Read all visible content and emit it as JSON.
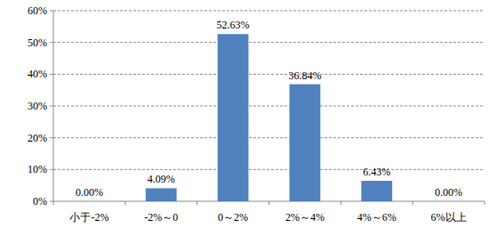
{
  "chart_data": {
    "type": "bar",
    "categories": [
      "小于-2%",
      "-2%～0",
      "0～2%",
      "2%～4%",
      "4%～6%",
      "6%以上"
    ],
    "values": [
      0.0,
      4.09,
      52.63,
      36.84,
      6.43,
      0.0
    ],
    "value_labels": [
      "0.00%",
      "4.09%",
      "52.63%",
      "36.84%",
      "6.43%",
      "0.00%"
    ],
    "color": "#4f81bd",
    "ylim": [
      0,
      60
    ],
    "yticks": [
      {
        "value": 0,
        "label": "0%"
      },
      {
        "value": 10,
        "label": "10%"
      },
      {
        "value": 20,
        "label": "20%"
      },
      {
        "value": 30,
        "label": "30%"
      },
      {
        "value": 40,
        "label": "40%"
      },
      {
        "value": 50,
        "label": "50%"
      },
      {
        "value": 60,
        "label": "60%"
      }
    ],
    "grid": true,
    "data_labels": true
  }
}
